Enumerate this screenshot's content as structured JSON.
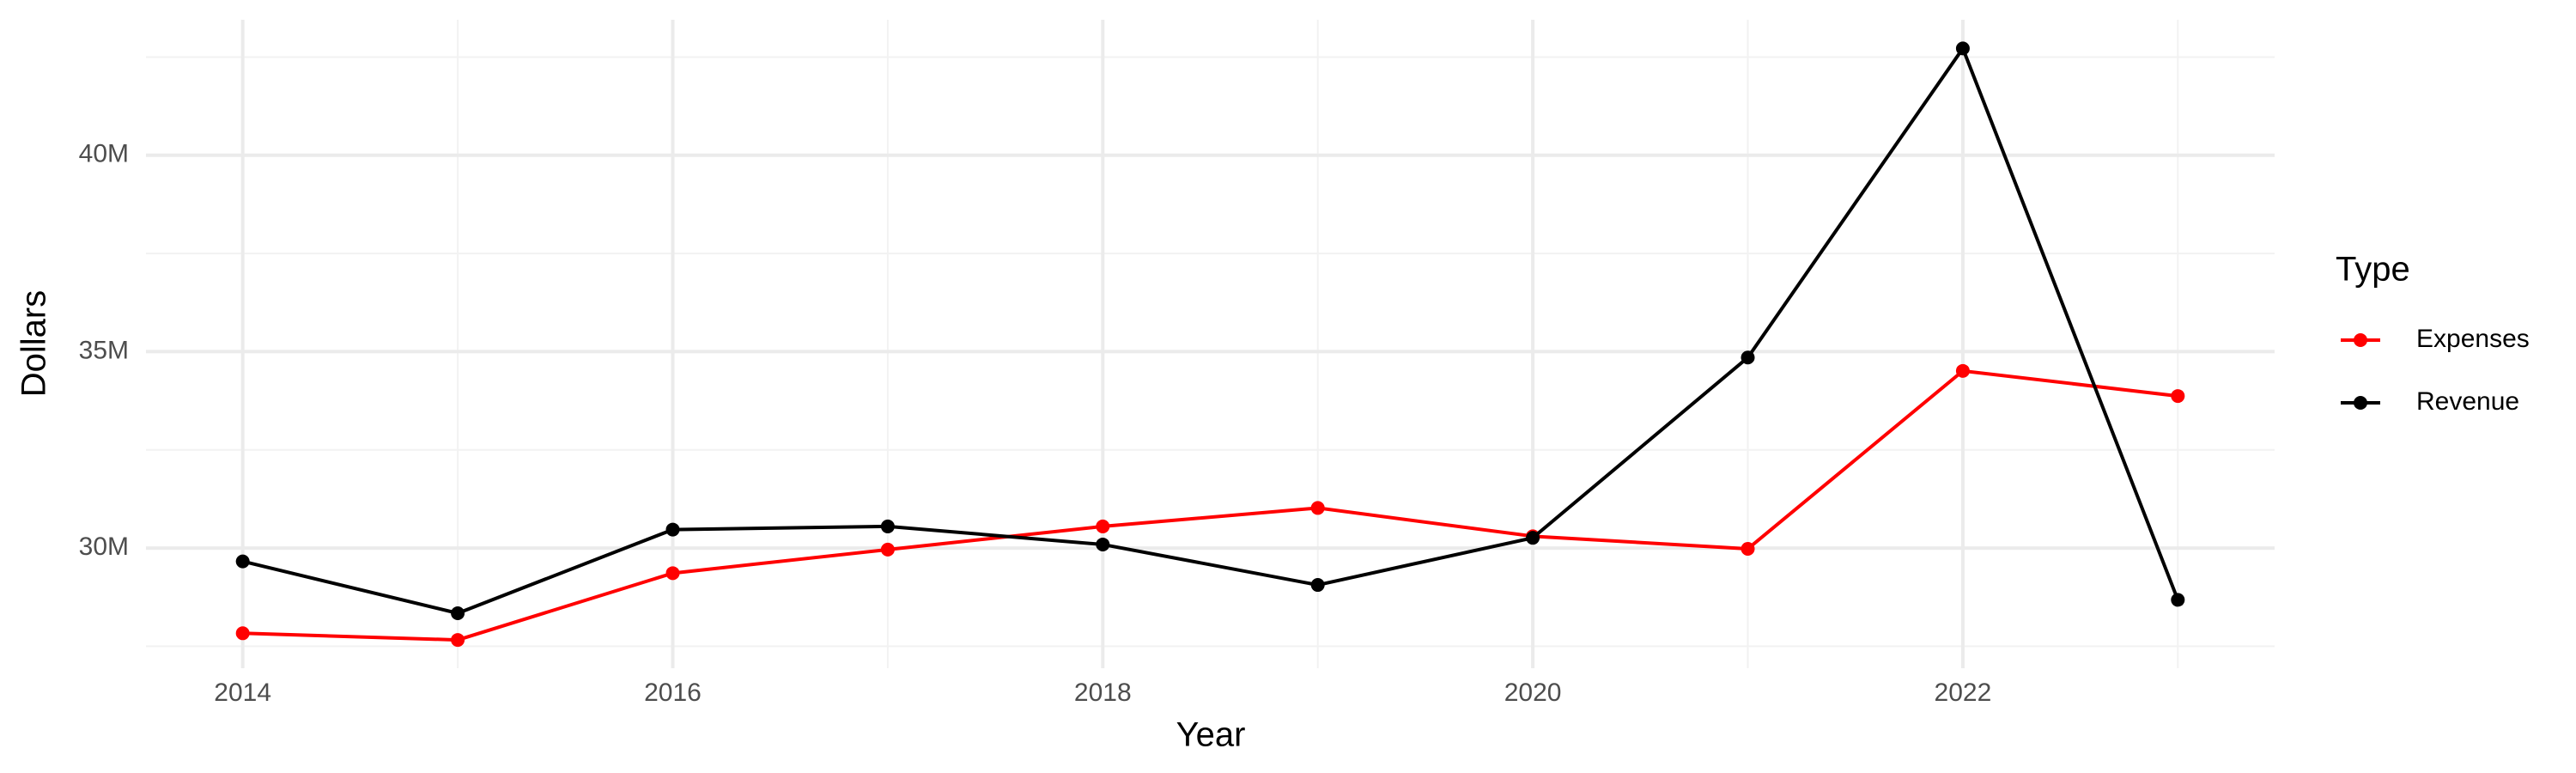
{
  "chart_data": {
    "type": "line",
    "x_label": "Year",
    "y_label": "Dollars",
    "legend_title": "Type",
    "x": [
      2014,
      2015,
      2016,
      2017,
      2018,
      2019,
      2020,
      2021,
      2022,
      2023
    ],
    "series": [
      {
        "name": "Expenses",
        "color": "#ff0000",
        "values": [
          27830000,
          27660000,
          29360000,
          29960000,
          30550000,
          31020000,
          30300000,
          29980000,
          34510000,
          33870000
        ]
      },
      {
        "name": "Revenue",
        "color": "#000000",
        "values": [
          29660000,
          28340000,
          30470000,
          30550000,
          30090000,
          29060000,
          30260000,
          34850000,
          42720000,
          28680000
        ]
      }
    ],
    "xlim": [
      2013.55,
      2023.45
    ],
    "xticks": [
      2014,
      2016,
      2018,
      2020,
      2022
    ],
    "xminor": [
      2015,
      2017,
      2019,
      2021,
      2023
    ],
    "ylim": [
      26940000,
      43450000
    ],
    "yticks": [
      {
        "value": 30000000,
        "label": "30M"
      },
      {
        "value": 35000000,
        "label": "35M"
      },
      {
        "value": 40000000,
        "label": "40M"
      }
    ],
    "yminor": [
      27500000,
      32500000,
      37500000,
      42500000
    ],
    "grid": true,
    "legend": "right"
  }
}
